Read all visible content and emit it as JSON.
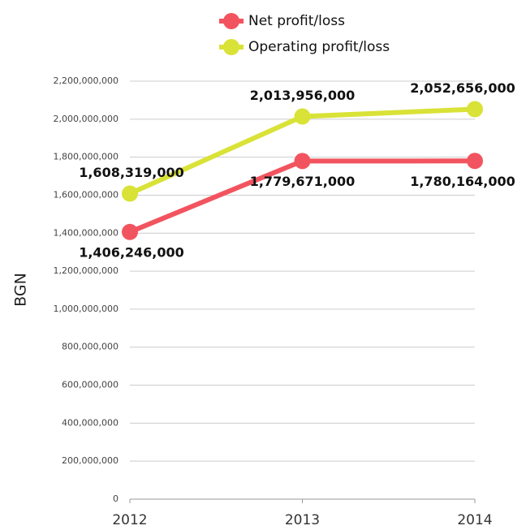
{
  "chart_data": {
    "type": "line",
    "y_label": "BGN",
    "categories": [
      "2012",
      "2013",
      "2014"
    ],
    "series": [
      {
        "name": "Net profit/loss",
        "color": "#f2545f",
        "values": [
          1406246000,
          1779671000,
          1780164000
        ],
        "value_labels": [
          "1,406,246,000",
          "1,779,671,000",
          "1,780,164,000"
        ]
      },
      {
        "name": "Operating profit/loss",
        "color": "#d9e237",
        "values": [
          1608319000,
          2013956000,
          2052656000
        ],
        "value_labels": [
          "1,608,319,000",
          "2,013,956,000",
          "2,052,656,000"
        ]
      }
    ],
    "ylim": [
      0,
      2200000000
    ],
    "yticks": [
      {
        "value": 0,
        "label": "0"
      },
      {
        "value": 200000000,
        "label": "200,000,000"
      },
      {
        "value": 400000000,
        "label": "400,000,000"
      },
      {
        "value": 600000000,
        "label": "600,000,000"
      },
      {
        "value": 800000000,
        "label": "800,000,000"
      },
      {
        "value": 1000000000,
        "label": "1,000,000,000"
      },
      {
        "value": 1200000000,
        "label": "1,200,000,000"
      },
      {
        "value": 1400000000,
        "label": "1,400,000,000"
      },
      {
        "value": 1600000000,
        "label": "1,600,000,000"
      },
      {
        "value": 1800000000,
        "label": "1,800,000,000"
      },
      {
        "value": 2000000000,
        "label": "2,000,000,000"
      },
      {
        "value": 2200000000,
        "label": "2,200,000,000"
      }
    ],
    "grid": true
  }
}
